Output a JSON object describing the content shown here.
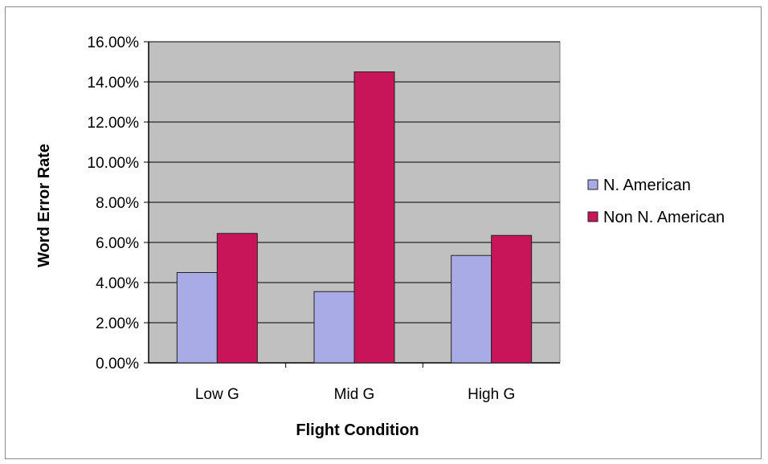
{
  "chart_data": {
    "type": "bar",
    "title": "",
    "xlabel": "Flight Condition",
    "ylabel": "Word Error Rate",
    "categories": [
      "Low G",
      "Mid G",
      "High G"
    ],
    "series": [
      {
        "name": "N. American",
        "values": [
          4.5,
          3.55,
          5.35
        ],
        "color": "#a9abe6"
      },
      {
        "name": "Non N. American",
        "values": [
          6.45,
          14.5,
          6.35
        ],
        "color": "#c8155a"
      }
    ],
    "ylim": [
      0,
      16
    ],
    "y_ticks": [
      "0.00%",
      "2.00%",
      "4.00%",
      "6.00%",
      "8.00%",
      "10.00%",
      "12.00%",
      "14.00%",
      "16.00%"
    ],
    "y_unit": "percent",
    "grid": true,
    "plot_background": "#c0c0c0",
    "legend": "right"
  }
}
